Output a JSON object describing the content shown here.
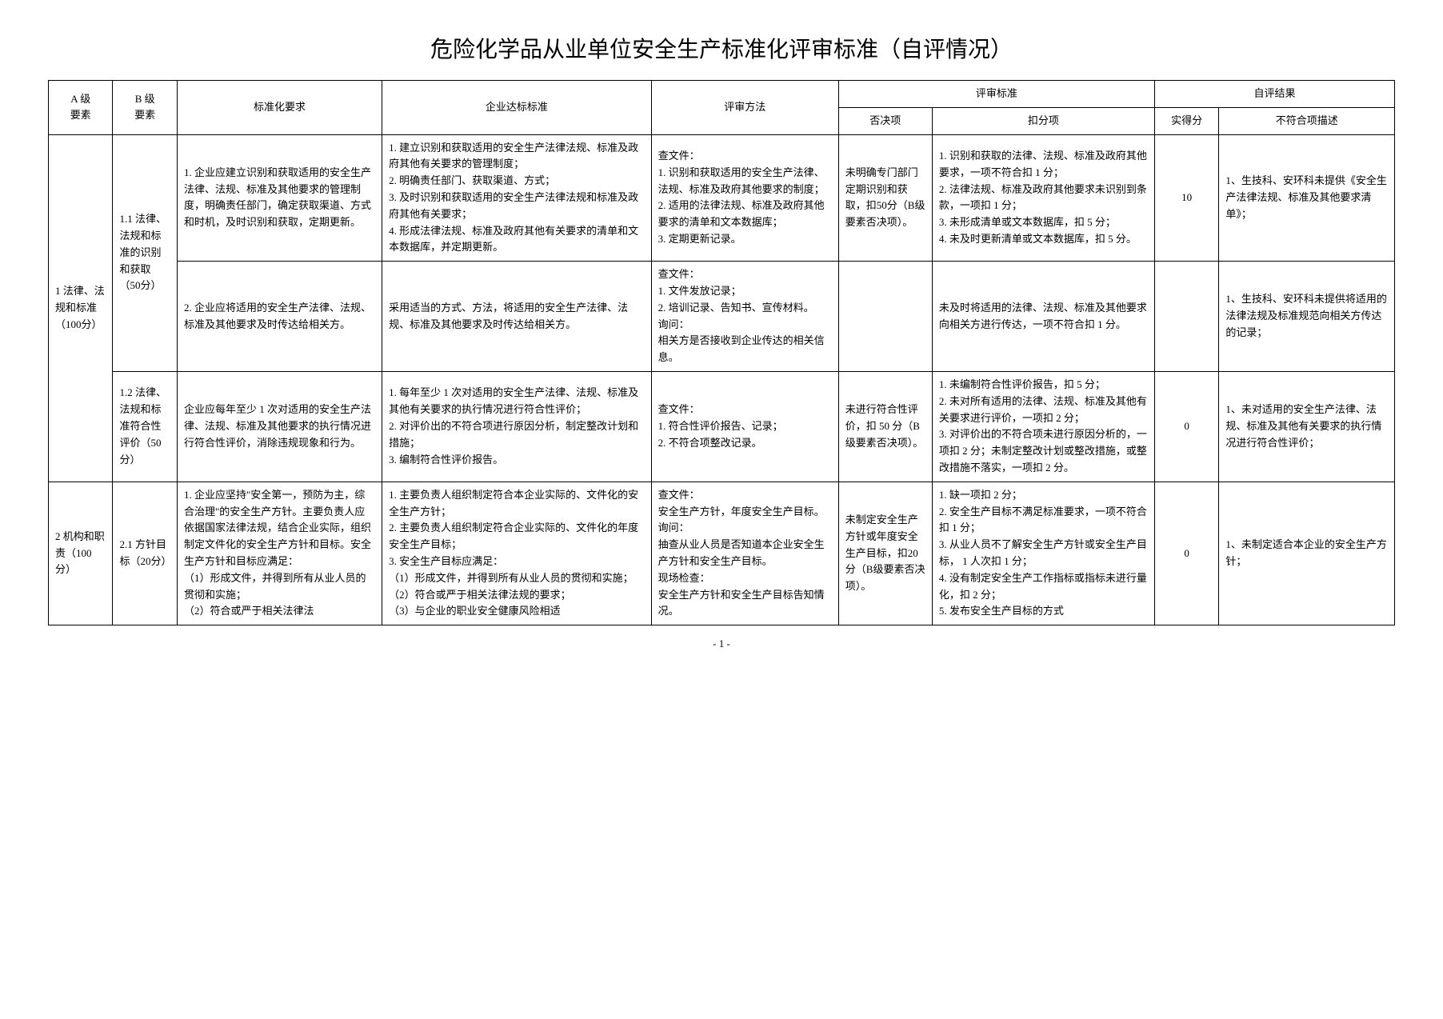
{
  "title": "危险化学品从业单位安全生产标准化评审标准（自评情况）",
  "headers": {
    "a": "A 级\n要素",
    "b": "B 级\n要素",
    "req": "标准化要求",
    "std": "企业达标标准",
    "method": "评审方法",
    "criteria": "评审标准",
    "veto": "否决项",
    "deduct": "扣分项",
    "result": "自评结果",
    "score": "实得分",
    "desc": "不符合项描述"
  },
  "rows": [
    {
      "a": "1 法律、法规和标准（100分）",
      "b": "1.1 法律、法规和标准的识别和获取（50分）",
      "req": "1. 企业应建立识别和获取适用的安全生产法律、法规、标准及其他要求的管理制度，明确责任部门，确定获取渠道、方式和时机，及时识别和获取，定期更新。",
      "std": "1. 建立识别和获取适用的安全生产法律法规、标准及政府其他有关要求的管理制度；\n2. 明确责任部门、获取渠道、方式；\n3. 及时识别和获取适用的安全生产法律法规和标准及政府其他有关要求；\n4. 形成法律法规、标准及政府其他有关要求的清单和文本数据库，并定期更新。",
      "method": "查文件：\n1. 识别和获取适用的安全生产法律、法规、标准及政府其他要求的制度；\n2. 适用的法律法规、标准及政府其他要求的清单和文本数据库；\n3. 定期更新记录。",
      "veto": "未明确专门部门定期识别和获取，扣50分（B级要素否决项）。",
      "deduct": "1. 识别和获取的法律、法规、标准及政府其他要求，一项不符合扣 1 分；\n2. 法律法规、标准及政府其他要求未识别到条款，一项扣 1 分；\n3. 未形成清单或文本数据库，扣 5 分；\n4. 未及时更新清单或文本数据库，扣 5 分。",
      "score": "10",
      "desc": "1、生技科、安环科未提供《安全生产法律法规、标准及其他要求清单》；"
    },
    {
      "req": "2. 企业应将适用的安全生产法律、法规、标准及其他要求及时传达给相关方。",
      "std": "采用适当的方式、方法，将适用的安全生产法律、法规、标准及其他要求及时传达给相关方。",
      "method": "查文件：\n1. 文件发放记录；\n2. 培训记录、告知书、宣传材料。\n询问：\n相关方是否接收到企业传达的相关信息。",
      "veto": "",
      "deduct": "未及时将适用的法律、法规、标准及其他要求向相关方进行传达，一项不符合扣 1 分。",
      "score": "",
      "desc": "1、生技科、安环科未提供将适用的法律法规及标准规范向相关方传达的记录；"
    },
    {
      "b": "1.2 法律、法规和标准符合性评价（50分）",
      "req": "企业应每年至少 1 次对适用的安全生产法律、法规、标准及其他要求的执行情况进行符合性评价，消除违规现象和行为。",
      "std": "1. 每年至少 1 次对适用的安全生产法律、法规、标准及其他有关要求的执行情况进行符合性评价；\n2. 对评价出的不符合项进行原因分析，制定整改计划和措施；\n3. 编制符合性评价报告。",
      "method": "查文件：\n1. 符合性评价报告、记录；\n2. 不符合项整改记录。",
      "veto": "未进行符合性评价，扣 50 分（B 级要素否决项）。",
      "deduct": "1. 未编制符合性评价报告，扣 5 分；\n2. 未对所有适用的法律、法规、标准及其他有关要求进行评价，一项扣 2 分；\n3. 对评价出的不符合项未进行原因分析的，一项扣 2 分；未制定整改计划或整改措施，或整改措施不落实，一项扣 2 分。",
      "score": "0",
      "desc": "1、未对适用的安全生产法律、法规、标准及其他有关要求的执行情况进行符合性评价；"
    },
    {
      "a": "2 机构和职责（100分）",
      "b": "2.1 方针目标（20分）",
      "req": "1. 企业应坚持\"安全第一，预防为主，综合治理\"的安全生产方针。主要负责人应依据国家法律法规，结合企业实际，组织制定文件化的安全生产方针和目标。安全生产方针和目标应满足：\n（1）形成文件，并得到所有从业人员的贯彻和实施；\n（2）符合或严于相关法律法",
      "std": "1. 主要负责人组织制定符合本企业实际的、文件化的安全生产方针；\n2. 主要负责人组织制定符合企业实际的、文件化的年度安全生产目标；\n3. 安全生产目标应满足：\n（1）形成文件，并得到所有从业人员的贯彻和实施；\n（2）符合或严于相关法律法规的要求；\n（3）与企业的职业安全健康风险相适",
      "method": "查文件：\n安全生产方针，年度安全生产目标。\n询问：\n抽查从业人员是否知道本企业安全生产方针和安全生产目标。\n现场检查：\n安全生产方针和安全生产目标告知情况。",
      "veto": "未制定安全生产方针或年度安全生产目标，扣20分（B级要素否决项）。",
      "deduct": "1. 缺一项扣 2 分；\n2. 安全生产目标不满足标准要求，一项不符合扣 1 分；\n3. 从业人员不了解安全生产方针或安全生产目标， 1 人次扣 1 分；\n4. 没有制定安全生产工作指标或指标未进行量化，扣 2 分；\n5. 发布安全生产目标的方式",
      "score": "0",
      "desc": "1、未制定适合本企业的安全生产方针；"
    }
  ],
  "pageNum": "- 1 -"
}
